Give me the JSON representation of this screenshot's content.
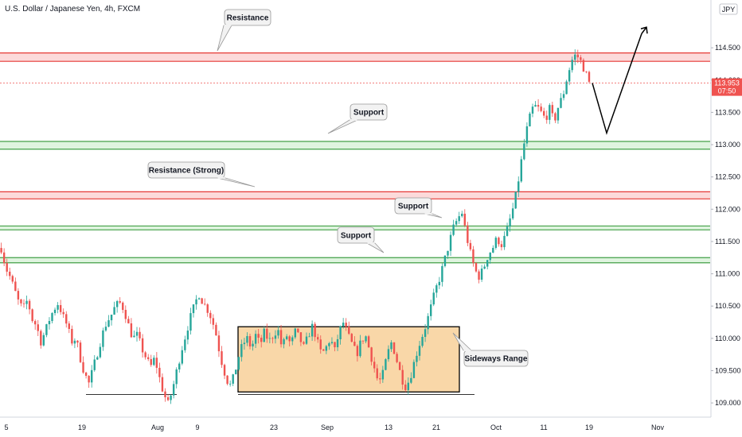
{
  "header": {
    "title": "U.S. Dollar / Japanese Yen, 4h, FXCM",
    "currency_badge": "JPY"
  },
  "colors": {
    "up": "#26a69a",
    "down": "#ef5350",
    "resistance_line": "#e53935",
    "resistance_fill": "#fbd3d3",
    "support_line": "#43a047",
    "support_fill": "#d9f2d9",
    "range_fill": "#f9d7a8",
    "price_tag": "#ef5350"
  },
  "chart_data": {
    "type": "candlestick",
    "symbol": "USDJPY",
    "timeframe": "4h",
    "ylim": [
      108.78,
      115.24
    ],
    "y_ticks": [
      "114.500",
      "114.000",
      "113.500",
      "113.000",
      "112.500",
      "112.000",
      "111.500",
      "111.000",
      "110.500",
      "110.000",
      "109.500",
      "109.000"
    ],
    "x_ticks": [
      "5",
      "19",
      "Aug",
      "9",
      "23",
      "Sep",
      "13",
      "21",
      "Oct",
      "11",
      "19",
      "Nov"
    ],
    "last_price": "113.953",
    "countdown": "07:50",
    "zones": [
      {
        "kind": "resistance",
        "low": 114.29,
        "high": 114.42
      },
      {
        "kind": "support",
        "low": 112.93,
        "high": 113.05
      },
      {
        "kind": "resistance",
        "low": 112.16,
        "high": 112.27
      },
      {
        "kind": "support",
        "low": 111.68,
        "high": 111.74
      },
      {
        "kind": "support",
        "low": 111.17,
        "high": 111.25
      }
    ],
    "annotations": {
      "callout_resistance": "Resistance",
      "callout_support_1": "Support",
      "callout_resistance_strong": "Resistance (Strong)",
      "callout_support_2": "Support",
      "callout_support_3": "Support",
      "callout_sideways": "Sideways Range"
    },
    "sideways_range": {
      "low": 109.17,
      "high": 110.18
    },
    "base_line": 109.13,
    "projection": [
      113.953,
      113.18,
      114.72
    ],
    "path": [
      111.4,
      111.1,
      110.95,
      110.75,
      110.55,
      110.45,
      110.6,
      110.3,
      110.2,
      109.95,
      110.1,
      110.3,
      110.45,
      110.55,
      110.35,
      110.2,
      109.95,
      110.0,
      109.7,
      109.45,
      109.3,
      109.55,
      109.8,
      110.05,
      110.25,
      110.35,
      110.5,
      110.55,
      110.45,
      110.2,
      110.0,
      110.05,
      109.85,
      109.7,
      109.55,
      109.7,
      109.4,
      109.15,
      108.98,
      109.2,
      109.5,
      109.8,
      110.05,
      110.3,
      110.5,
      110.7,
      110.55,
      110.45,
      110.3,
      110.05,
      109.7,
      109.45,
      109.25,
      109.4,
      109.7,
      109.9,
      110.0,
      109.85,
      110.05,
      109.9,
      110.1,
      109.95,
      110.05,
      110.15,
      109.85,
      110.05,
      109.9,
      110.1,
      110.0,
      109.85,
      110.05,
      110.2,
      109.95,
      109.75,
      109.85,
      110.0,
      109.8,
      110.1,
      110.25,
      110.05,
      109.9,
      109.75,
      109.95,
      110.05,
      109.8,
      109.55,
      109.3,
      109.45,
      109.75,
      109.95,
      109.7,
      109.45,
      109.25,
      109.35,
      109.6,
      109.85,
      110.05,
      110.25,
      110.5,
      110.75,
      110.95,
      111.2,
      111.45,
      111.7,
      111.85,
      111.95,
      111.6,
      111.3,
      111.05,
      110.95,
      111.1,
      111.3,
      111.4,
      111.55,
      111.45,
      111.6,
      111.85,
      112.1,
      112.5,
      112.95,
      113.3,
      113.55,
      113.6,
      113.5,
      113.4,
      113.55,
      113.35,
      113.6,
      113.75,
      114.05,
      114.3,
      114.4,
      114.3,
      114.15,
      113.95
    ]
  }
}
